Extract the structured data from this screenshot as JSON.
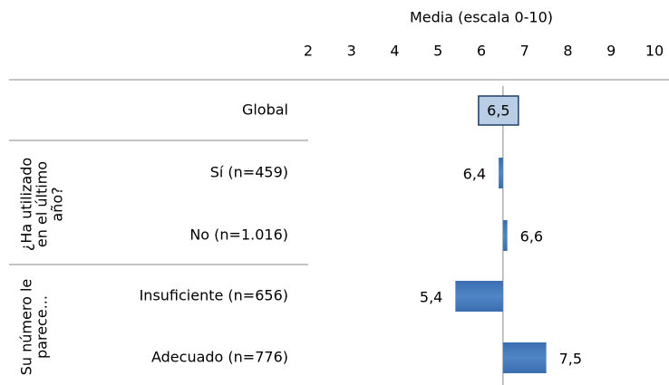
{
  "chart_data": {
    "type": "bar",
    "x_label": "Media (escala 0-10)",
    "xlim": [
      2,
      10
    ],
    "xticks": [
      2,
      3,
      4,
      5,
      6,
      7,
      8,
      9,
      10
    ],
    "color": "#4a7ebb",
    "global": {
      "category": "Global",
      "value": 6.5,
      "value_label": "6,5",
      "color": "#b9cde5"
    },
    "groups": [
      {
        "label": [
          "¿Ha utilizado",
          "en el último",
          "año?"
        ],
        "categories": [
          "Sí (n=459)",
          "No (n=1.016)"
        ],
        "values": [
          6.4,
          6.6
        ],
        "value_labels": [
          "6,4",
          "6,6"
        ]
      },
      {
        "label": [
          "Su número le",
          "parece..."
        ],
        "categories": [
          "Insuficiente (n=656)",
          "Adecuado (n=776)"
        ],
        "values": [
          5.4,
          7.5
        ],
        "value_labels": [
          "5,4",
          "7,5"
        ]
      }
    ]
  }
}
